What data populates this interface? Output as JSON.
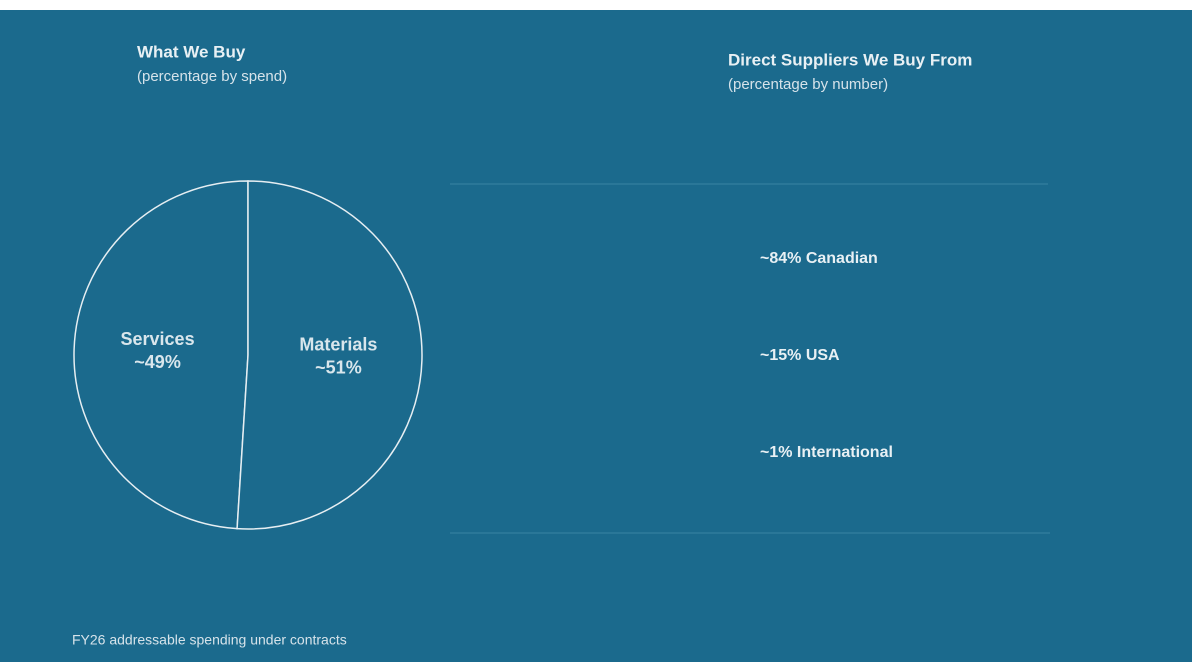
{
  "chart_data": {
    "type": "pie",
    "title": "What We Buy",
    "subtitle": "(percentage by spend)",
    "categories": [
      "Services",
      "Materials"
    ],
    "values": [
      49,
      51
    ],
    "value_labels": [
      "~49%",
      "~51%"
    ],
    "colors": [
      "#1b6a8d",
      "#1b6a8d"
    ],
    "start": "top",
    "direction": "counterclockwise"
  },
  "suppliers": {
    "title": "Direct Suppliers We Buy From",
    "subtitle": "(percentage by number)",
    "items": [
      "~84% Canadian",
      "~15% USA",
      "~1% International"
    ]
  },
  "footnote": "FY26 addressable spending under contracts"
}
